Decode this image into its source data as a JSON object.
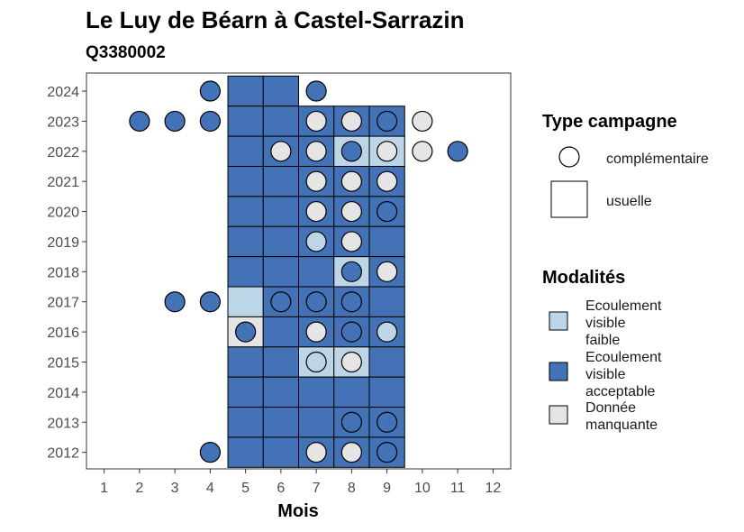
{
  "chart_data": {
    "type": "heatmap",
    "title": "Le Luy de Béarn à Castel-Sarrazin",
    "subtitle": "Q3380002",
    "xlabel": "Mois",
    "ylabel": "",
    "x_ticks": [
      1,
      2,
      3,
      4,
      5,
      6,
      7,
      8,
      9,
      10,
      11,
      12
    ],
    "y_ticks": [
      2012,
      2013,
      2014,
      2015,
      2016,
      2017,
      2018,
      2019,
      2020,
      2021,
      2022,
      2023,
      2024
    ],
    "xlim": [
      0.5,
      12.5
    ],
    "ylim": [
      2011.45,
      2024.6
    ],
    "grid": false,
    "colors": {
      "faible": "#bcd6e8",
      "acceptable": "#4472b6",
      "manquante": "#e5e5e5"
    },
    "legend_type": {
      "title": "Type campagne",
      "items": [
        {
          "shape": "circle",
          "label": "complémentaire"
        },
        {
          "shape": "square",
          "label": "usuelle"
        }
      ]
    },
    "legend_modalites": {
      "title": "Modalités",
      "items": [
        {
          "key": "faible",
          "lines": [
            "Ecoulement",
            "visible",
            "faible"
          ]
        },
        {
          "key": "acceptable",
          "lines": [
            "Ecoulement",
            "visible",
            "acceptable"
          ]
        },
        {
          "key": "manquante",
          "lines": [
            "Donnée",
            "manquante"
          ]
        }
      ]
    },
    "usuelle": [
      {
        "year": 2024,
        "month": 5,
        "value": "acceptable"
      },
      {
        "year": 2024,
        "month": 6,
        "value": "acceptable"
      },
      {
        "year": 2023,
        "month": 5,
        "value": "acceptable"
      },
      {
        "year": 2023,
        "month": 6,
        "value": "acceptable"
      },
      {
        "year": 2023,
        "month": 7,
        "value": "acceptable"
      },
      {
        "year": 2023,
        "month": 8,
        "value": "acceptable"
      },
      {
        "year": 2023,
        "month": 9,
        "value": "acceptable"
      },
      {
        "year": 2022,
        "month": 5,
        "value": "acceptable"
      },
      {
        "year": 2022,
        "month": 6,
        "value": "acceptable"
      },
      {
        "year": 2022,
        "month": 7,
        "value": "acceptable"
      },
      {
        "year": 2022,
        "month": 8,
        "value": "faible"
      },
      {
        "year": 2022,
        "month": 9,
        "value": "faible"
      },
      {
        "year": 2021,
        "month": 5,
        "value": "acceptable"
      },
      {
        "year": 2021,
        "month": 6,
        "value": "acceptable"
      },
      {
        "year": 2021,
        "month": 7,
        "value": "acceptable"
      },
      {
        "year": 2021,
        "month": 8,
        "value": "acceptable"
      },
      {
        "year": 2021,
        "month": 9,
        "value": "acceptable"
      },
      {
        "year": 2020,
        "month": 5,
        "value": "acceptable"
      },
      {
        "year": 2020,
        "month": 6,
        "value": "acceptable"
      },
      {
        "year": 2020,
        "month": 7,
        "value": "acceptable"
      },
      {
        "year": 2020,
        "month": 8,
        "value": "acceptable"
      },
      {
        "year": 2020,
        "month": 9,
        "value": "acceptable"
      },
      {
        "year": 2019,
        "month": 5,
        "value": "acceptable"
      },
      {
        "year": 2019,
        "month": 6,
        "value": "acceptable"
      },
      {
        "year": 2019,
        "month": 7,
        "value": "acceptable"
      },
      {
        "year": 2019,
        "month": 8,
        "value": "acceptable"
      },
      {
        "year": 2019,
        "month": 9,
        "value": "acceptable"
      },
      {
        "year": 2018,
        "month": 5,
        "value": "acceptable"
      },
      {
        "year": 2018,
        "month": 6,
        "value": "acceptable"
      },
      {
        "year": 2018,
        "month": 7,
        "value": "acceptable"
      },
      {
        "year": 2018,
        "month": 8,
        "value": "faible"
      },
      {
        "year": 2018,
        "month": 9,
        "value": "acceptable"
      },
      {
        "year": 2017,
        "month": 5,
        "value": "faible"
      },
      {
        "year": 2017,
        "month": 6,
        "value": "acceptable"
      },
      {
        "year": 2017,
        "month": 7,
        "value": "acceptable"
      },
      {
        "year": 2017,
        "month": 8,
        "value": "acceptable"
      },
      {
        "year": 2017,
        "month": 9,
        "value": "acceptable"
      },
      {
        "year": 2016,
        "month": 5,
        "value": "manquante"
      },
      {
        "year": 2016,
        "month": 6,
        "value": "acceptable"
      },
      {
        "year": 2016,
        "month": 7,
        "value": "acceptable"
      },
      {
        "year": 2016,
        "month": 8,
        "value": "acceptable"
      },
      {
        "year": 2016,
        "month": 9,
        "value": "acceptable"
      },
      {
        "year": 2015,
        "month": 5,
        "value": "acceptable"
      },
      {
        "year": 2015,
        "month": 6,
        "value": "acceptable"
      },
      {
        "year": 2015,
        "month": 7,
        "value": "faible"
      },
      {
        "year": 2015,
        "month": 8,
        "value": "faible"
      },
      {
        "year": 2015,
        "month": 9,
        "value": "acceptable"
      },
      {
        "year": 2014,
        "month": 5,
        "value": "acceptable"
      },
      {
        "year": 2014,
        "month": 6,
        "value": "acceptable"
      },
      {
        "year": 2014,
        "month": 7,
        "value": "acceptable"
      },
      {
        "year": 2014,
        "month": 8,
        "value": "acceptable"
      },
      {
        "year": 2014,
        "month": 9,
        "value": "acceptable"
      },
      {
        "year": 2013,
        "month": 5,
        "value": "acceptable"
      },
      {
        "year": 2013,
        "month": 6,
        "value": "acceptable"
      },
      {
        "year": 2013,
        "month": 7,
        "value": "acceptable"
      },
      {
        "year": 2013,
        "month": 8,
        "value": "acceptable"
      },
      {
        "year": 2013,
        "month": 9,
        "value": "acceptable"
      },
      {
        "year": 2012,
        "month": 5,
        "value": "acceptable"
      },
      {
        "year": 2012,
        "month": 6,
        "value": "acceptable"
      },
      {
        "year": 2012,
        "month": 7,
        "value": "acceptable"
      },
      {
        "year": 2012,
        "month": 8,
        "value": "acceptable"
      },
      {
        "year": 2012,
        "month": 9,
        "value": "acceptable"
      }
    ],
    "complementaire": [
      {
        "year": 2024,
        "month": 4,
        "value": "acceptable"
      },
      {
        "year": 2024,
        "month": 7,
        "value": "acceptable"
      },
      {
        "year": 2023,
        "month": 2,
        "value": "acceptable"
      },
      {
        "year": 2023,
        "month": 3,
        "value": "acceptable"
      },
      {
        "year": 2023,
        "month": 4,
        "value": "acceptable"
      },
      {
        "year": 2023,
        "month": 7,
        "value": "manquante"
      },
      {
        "year": 2023,
        "month": 8,
        "value": "manquante"
      },
      {
        "year": 2023,
        "month": 9,
        "value": "acceptable"
      },
      {
        "year": 2023,
        "month": 10,
        "value": "manquante"
      },
      {
        "year": 2022,
        "month": 6,
        "value": "manquante"
      },
      {
        "year": 2022,
        "month": 7,
        "value": "manquante"
      },
      {
        "year": 2022,
        "month": 8,
        "value": "acceptable"
      },
      {
        "year": 2022,
        "month": 9,
        "value": "manquante"
      },
      {
        "year": 2022,
        "month": 10,
        "value": "manquante"
      },
      {
        "year": 2022,
        "month": 11,
        "value": "acceptable"
      },
      {
        "year": 2021,
        "month": 7,
        "value": "manquante"
      },
      {
        "year": 2021,
        "month": 8,
        "value": "manquante"
      },
      {
        "year": 2021,
        "month": 9,
        "value": "manquante"
      },
      {
        "year": 2020,
        "month": 7,
        "value": "manquante"
      },
      {
        "year": 2020,
        "month": 8,
        "value": "manquante"
      },
      {
        "year": 2020,
        "month": 9,
        "value": "acceptable"
      },
      {
        "year": 2019,
        "month": 7,
        "value": "faible"
      },
      {
        "year": 2019,
        "month": 8,
        "value": "manquante"
      },
      {
        "year": 2018,
        "month": 8,
        "value": "acceptable"
      },
      {
        "year": 2018,
        "month": 9,
        "value": "manquante"
      },
      {
        "year": 2017,
        "month": 3,
        "value": "acceptable"
      },
      {
        "year": 2017,
        "month": 4,
        "value": "acceptable"
      },
      {
        "year": 2017,
        "month": 6,
        "value": "acceptable"
      },
      {
        "year": 2017,
        "month": 7,
        "value": "acceptable"
      },
      {
        "year": 2017,
        "month": 8,
        "value": "acceptable"
      },
      {
        "year": 2016,
        "month": 5,
        "value": "acceptable"
      },
      {
        "year": 2016,
        "month": 7,
        "value": "manquante"
      },
      {
        "year": 2016,
        "month": 8,
        "value": "acceptable"
      },
      {
        "year": 2016,
        "month": 9,
        "value": "faible"
      },
      {
        "year": 2015,
        "month": 7,
        "value": "faible"
      },
      {
        "year": 2015,
        "month": 8,
        "value": "manquante"
      },
      {
        "year": 2013,
        "month": 8,
        "value": "acceptable"
      },
      {
        "year": 2013,
        "month": 9,
        "value": "acceptable"
      },
      {
        "year": 2012,
        "month": 4,
        "value": "acceptable"
      },
      {
        "year": 2012,
        "month": 7,
        "value": "manquante"
      },
      {
        "year": 2012,
        "month": 8,
        "value": "manquante"
      },
      {
        "year": 2012,
        "month": 9,
        "value": "acceptable"
      }
    ]
  }
}
